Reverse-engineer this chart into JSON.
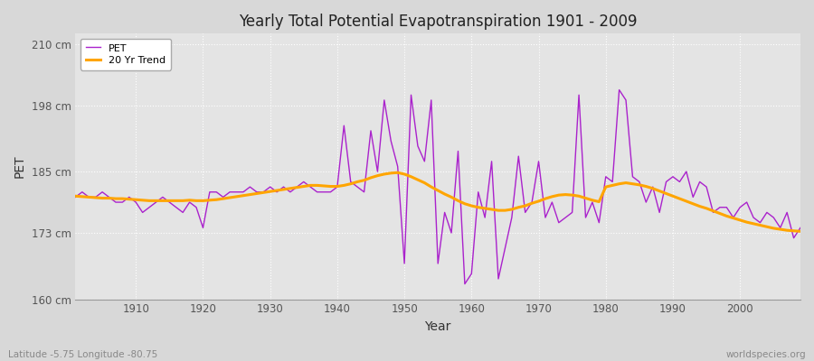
{
  "title": "Yearly Total Potential Evapotranspiration 1901 - 2009",
  "xlabel": "Year",
  "ylabel": "PET",
  "subtitle_left": "Latitude -5.75 Longitude -80.75",
  "subtitle_right": "worldspecies.org",
  "ylim": [
    160,
    212
  ],
  "yticks": [
    160,
    173,
    185,
    198,
    210
  ],
  "ytick_labels": [
    "160 cm",
    "173 cm",
    "185 cm",
    "198 cm",
    "210 cm"
  ],
  "xlim": [
    1901,
    2009
  ],
  "xticks": [
    1910,
    1920,
    1930,
    1940,
    1950,
    1960,
    1970,
    1980,
    1990,
    2000
  ],
  "pet_color": "#AA22CC",
  "trend_color": "#FFA500",
  "fig_bg_color": "#D8D8D8",
  "plot_bg_color": "#E4E4E4",
  "grid_color": "#FFFFFF",
  "years": [
    1901,
    1902,
    1903,
    1904,
    1905,
    1906,
    1907,
    1908,
    1909,
    1910,
    1911,
    1912,
    1913,
    1914,
    1915,
    1916,
    1917,
    1918,
    1919,
    1920,
    1921,
    1922,
    1923,
    1924,
    1925,
    1926,
    1927,
    1928,
    1929,
    1930,
    1931,
    1932,
    1933,
    1934,
    1935,
    1936,
    1937,
    1938,
    1939,
    1940,
    1941,
    1942,
    1943,
    1944,
    1945,
    1946,
    1947,
    1948,
    1949,
    1950,
    1951,
    1952,
    1953,
    1954,
    1955,
    1956,
    1957,
    1958,
    1959,
    1960,
    1961,
    1962,
    1963,
    1964,
    1965,
    1966,
    1967,
    1968,
    1969,
    1970,
    1971,
    1972,
    1973,
    1974,
    1975,
    1976,
    1977,
    1978,
    1979,
    1980,
    1981,
    1982,
    1983,
    1984,
    1985,
    1986,
    1987,
    1988,
    1989,
    1990,
    1991,
    1992,
    1993,
    1994,
    1995,
    1996,
    1997,
    1998,
    1999,
    2000,
    2001,
    2002,
    2003,
    2004,
    2005,
    2006,
    2007,
    2008,
    2009
  ],
  "pet_values": [
    180,
    181,
    180,
    180,
    181,
    180,
    179,
    179,
    180,
    179,
    177,
    178,
    179,
    180,
    179,
    178,
    177,
    179,
    178,
    174,
    181,
    181,
    180,
    181,
    181,
    181,
    182,
    181,
    181,
    182,
    181,
    182,
    181,
    182,
    183,
    182,
    181,
    181,
    181,
    182,
    194,
    183,
    182,
    181,
    193,
    185,
    199,
    191,
    186,
    167,
    200,
    190,
    187,
    199,
    167,
    177,
    173,
    189,
    163,
    165,
    181,
    176,
    187,
    164,
    170,
    176,
    188,
    177,
    179,
    187,
    176,
    179,
    175,
    176,
    177,
    200,
    176,
    179,
    175,
    184,
    183,
    201,
    199,
    184,
    183,
    179,
    182,
    177,
    183,
    184,
    183,
    185,
    180,
    183,
    182,
    177,
    178,
    178,
    176,
    178,
    179,
    176,
    175,
    177,
    176,
    174,
    177,
    172,
    174
  ],
  "trend_values": [
    180.2,
    180.1,
    180.0,
    179.9,
    179.8,
    179.8,
    179.7,
    179.7,
    179.6,
    179.5,
    179.4,
    179.3,
    179.3,
    179.3,
    179.3,
    179.3,
    179.3,
    179.4,
    179.3,
    179.3,
    179.4,
    179.5,
    179.7,
    179.9,
    180.1,
    180.3,
    180.5,
    180.7,
    180.9,
    181.1,
    181.3,
    181.5,
    181.7,
    181.9,
    182.1,
    182.3,
    182.3,
    182.2,
    182.1,
    182.1,
    182.3,
    182.6,
    183.0,
    183.3,
    183.8,
    184.2,
    184.5,
    184.7,
    184.8,
    184.5,
    184.0,
    183.4,
    182.8,
    182.0,
    181.3,
    180.6,
    180.0,
    179.3,
    178.7,
    178.3,
    178.0,
    177.8,
    177.6,
    177.4,
    177.4,
    177.6,
    178.0,
    178.3,
    178.8,
    179.2,
    179.7,
    180.1,
    180.4,
    180.5,
    180.4,
    180.2,
    179.8,
    179.4,
    179.1,
    182.0,
    182.3,
    182.6,
    182.8,
    182.6,
    182.4,
    182.1,
    181.7,
    181.2,
    180.7,
    180.2,
    179.7,
    179.2,
    178.7,
    178.2,
    177.8,
    177.3,
    176.8,
    176.3,
    175.9,
    175.5,
    175.1,
    174.8,
    174.5,
    174.2,
    173.9,
    173.7,
    173.5,
    173.4,
    173.3
  ]
}
